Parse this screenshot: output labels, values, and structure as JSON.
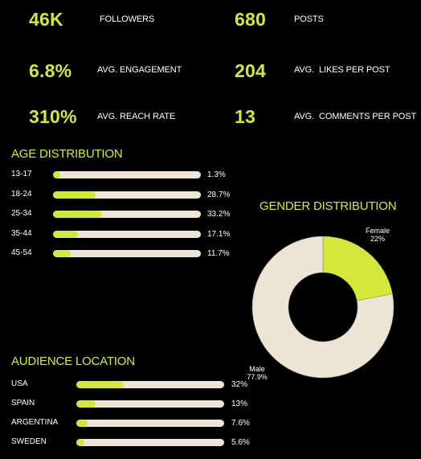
{
  "stats": [
    {
      "value": "46K",
      "label": "FOLLOWERS"
    },
    {
      "value": "680",
      "label": "POSTS"
    },
    {
      "value": "6.8%",
      "label": "AVG. ENGAGEMENT"
    },
    {
      "value": "204",
      "label": "AVG.  LIKES PER POST"
    },
    {
      "value": "310%",
      "label": "AVG. REACH RATE"
    },
    {
      "value": "13",
      "label": "AVG.  COMMENTS PER POST"
    }
  ],
  "age": {
    "title": "AGE DISTRIBUTION",
    "items": [
      {
        "label": "13-17",
        "value_text": "1.3%",
        "pct": 1.3
      },
      {
        "label": "18-24",
        "value_text": "28.7%",
        "pct": 28.7
      },
      {
        "label": "25-34",
        "value_text": "33.2%",
        "pct": 33.2
      },
      {
        "label": "35-44",
        "value_text": "17.1%",
        "pct": 17.1
      },
      {
        "label": "45-54",
        "value_text": "11.7%",
        "pct": 11.7
      }
    ]
  },
  "location": {
    "title": "AUDIENCE LOCATION",
    "items": [
      {
        "label": "USA",
        "value_text": "32%",
        "pct": 32
      },
      {
        "label": "SPAIN",
        "value_text": "13%",
        "pct": 13
      },
      {
        "label": "ARGENTINA",
        "value_text": "7.6%",
        "pct": 7.6
      },
      {
        "label": "SWEDEN",
        "value_text": "5.6%",
        "pct": 5.6
      }
    ]
  },
  "gender": {
    "title": "GENDER DISTRIBUTION",
    "slices": [
      {
        "name": "Female",
        "label": "22%",
        "value": 22,
        "color": "#d4e83a"
      },
      {
        "name": "Male",
        "label": "77.9%",
        "value": 77.9,
        "color": "#ede5d6"
      }
    ]
  },
  "colors": {
    "accent": "#d4e83a",
    "track": "#ede5d6",
    "background": "#000000"
  },
  "chart_data": [
    {
      "type": "bar",
      "title": "AGE DISTRIBUTION",
      "categories": [
        "13-17",
        "18-24",
        "25-34",
        "35-44",
        "45-54"
      ],
      "values": [
        1.3,
        28.7,
        33.2,
        17.1,
        11.7
      ],
      "xlabel": "",
      "ylabel": "",
      "xlim": [
        0,
        100
      ]
    },
    {
      "type": "pie",
      "title": "GENDER DISTRIBUTION",
      "categories": [
        "Female",
        "Male"
      ],
      "values": [
        22,
        77.9
      ]
    },
    {
      "type": "bar",
      "title": "AUDIENCE LOCATION",
      "categories": [
        "USA",
        "SPAIN",
        "ARGENTINA",
        "SWEDEN"
      ],
      "values": [
        32,
        13,
        7.6,
        5.6
      ],
      "xlabel": "",
      "ylabel": "",
      "xlim": [
        0,
        100
      ]
    }
  ]
}
